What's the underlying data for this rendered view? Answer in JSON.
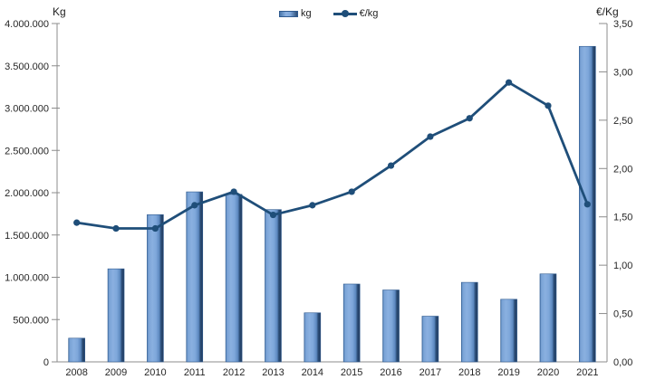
{
  "chart_data": {
    "type": "combo",
    "title": "",
    "categories": [
      "2008",
      "2009",
      "2010",
      "2011",
      "2012",
      "2013",
      "2014",
      "2015",
      "2016",
      "2017",
      "2018",
      "2019",
      "2020",
      "2021"
    ],
    "series": [
      {
        "name": "kg",
        "type": "bar",
        "axis": "left",
        "values": [
          280000,
          1100000,
          1740000,
          2010000,
          1980000,
          1800000,
          580000,
          920000,
          850000,
          540000,
          940000,
          740000,
          1040000,
          3730000
        ]
      },
      {
        "name": "€/kg",
        "type": "line",
        "axis": "right",
        "values": [
          1.44,
          1.38,
          1.38,
          1.62,
          1.76,
          1.52,
          1.62,
          1.76,
          2.03,
          2.33,
          2.52,
          2.89,
          2.65,
          1.63
        ]
      }
    ],
    "left_axis": {
      "title": "Kg",
      "min": 0,
      "max": 4000000,
      "step": 500000,
      "tick_labels": [
        "0",
        "500.000",
        "1.000.000",
        "1.500.000",
        "2.000.000",
        "2.500.000",
        "3.000.000",
        "3.500.000",
        "4.000.000"
      ]
    },
    "right_axis": {
      "title": "€/Kg",
      "min": 0,
      "max": 3.5,
      "step": 0.5,
      "tick_labels": [
        "0,00",
        "0,50",
        "1,00",
        "1,50",
        "2,00",
        "2,50",
        "3,00",
        "3,50"
      ]
    },
    "legend": {
      "position": "top",
      "entries": [
        "kg",
        "€/kg"
      ]
    },
    "grid": false,
    "colors": {
      "bar_gradient": [
        "#4a78ad",
        "#79a2d5",
        "#8ab0e0",
        "#7ea7da",
        "#5c88bf",
        "#2c4e78",
        "#203a5c"
      ],
      "bar_border": "#2f5a8f",
      "line": "#1f4e79",
      "axis": "#8c8c8c",
      "text": "#262626"
    }
  }
}
